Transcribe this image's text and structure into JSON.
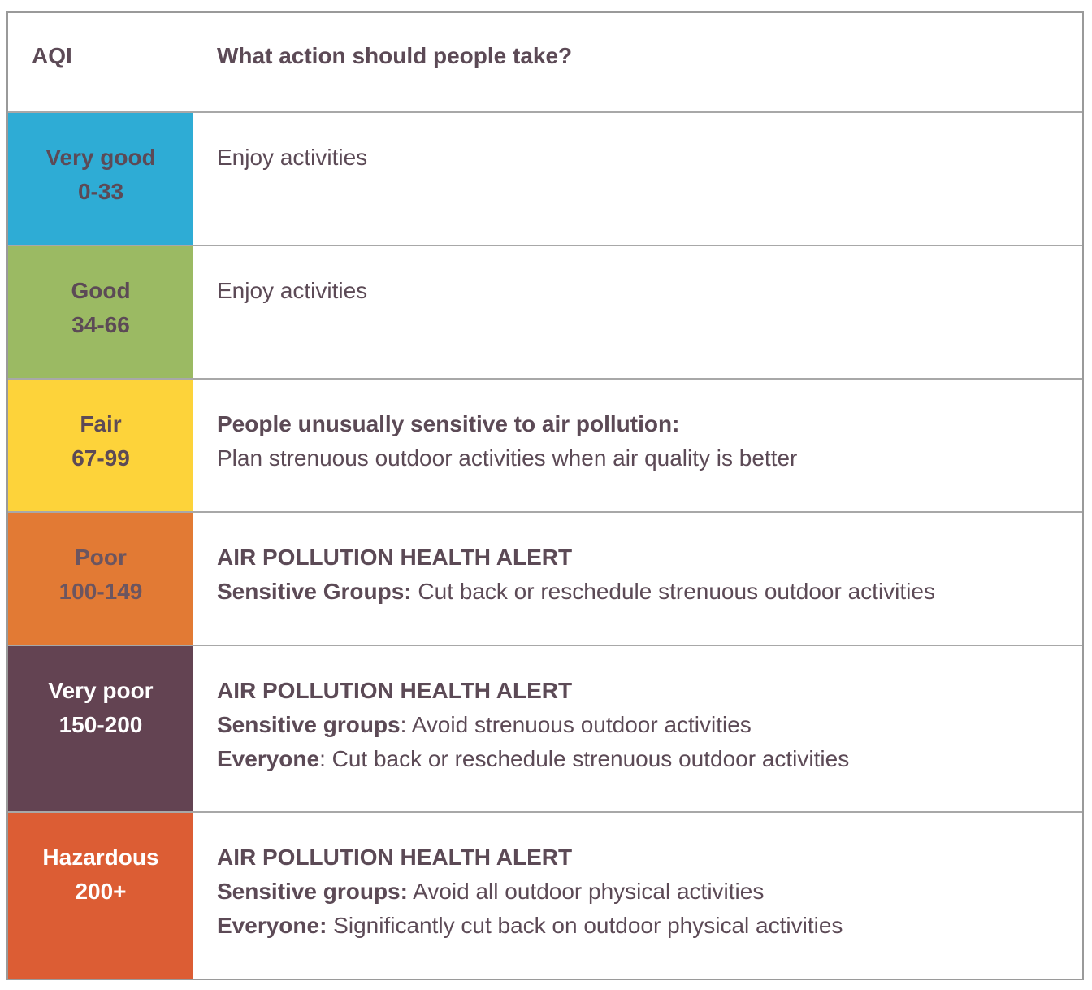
{
  "header": {
    "aqi_label": "AQI",
    "action_label": "What action should people take?"
  },
  "levels": [
    {
      "name": "Very good",
      "range": "0-33",
      "color": "#2eacd5",
      "action": "Enjoy activities"
    },
    {
      "name": "Good",
      "range": "34-66",
      "color": "#9bba63",
      "action": "Enjoy activities"
    },
    {
      "name": "Fair",
      "range": "67-99",
      "color": "#fdd33a",
      "action_heading": "People unusually sensitive to air pollution:",
      "action_text": "Plan strenuous outdoor activities when air quality is better"
    },
    {
      "name": "Poor",
      "range": "100-149",
      "color": "#e27a34",
      "alert": "AIR POLLUTION HEALTH ALERT",
      "sensitive_label": "Sensitive Groups:",
      "sensitive_text": " Cut back or reschedule strenuous outdoor activities"
    },
    {
      "name": "Very poor",
      "range": "150-200",
      "color": "#634352",
      "alert": "AIR POLLUTION HEALTH ALERT",
      "sensitive_label": "Sensitive groups",
      "sensitive_text": ": Avoid strenuous outdoor activities",
      "everyone_label": "Everyone",
      "everyone_text": ": Cut back or reschedule strenuous outdoor activities"
    },
    {
      "name": "Hazardous",
      "range": "200+",
      "color": "#dc5d34",
      "alert": "AIR POLLUTION HEALTH ALERT",
      "sensitive_label": "Sensitive groups:",
      "sensitive_text": " Avoid all outdoor physical activities",
      "everyone_label": "Everyone:",
      "everyone_text": " Significantly cut back on outdoor physical activities"
    }
  ]
}
